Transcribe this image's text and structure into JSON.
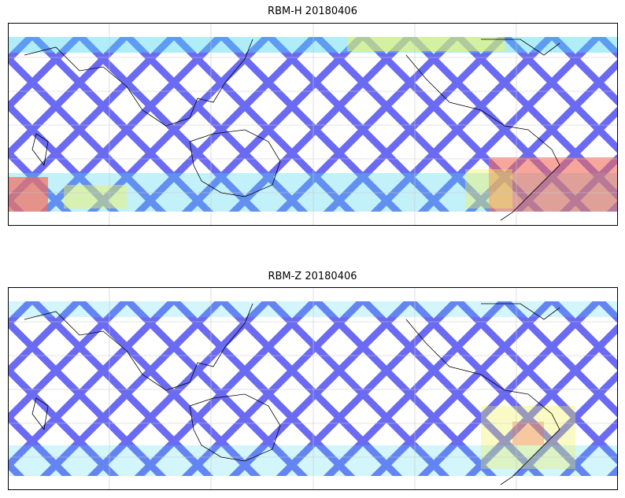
{
  "panels": [
    {
      "title": "RBM-H 20180406"
    },
    {
      "title": "RBM-Z 20180406"
    }
  ],
  "colors": {
    "track_base": "#6a6af2",
    "cyan": "#4fd8f2",
    "yellow": "#f2f25a",
    "red": "#f26a5a",
    "coast": "#000000",
    "grid": "#c8c8c8"
  }
}
